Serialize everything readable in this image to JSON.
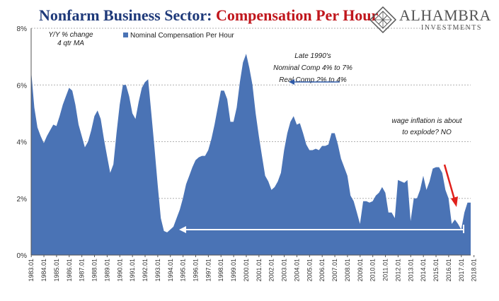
{
  "header": {
    "title_part1": "Nonfarm Business Sector:",
    "title_part2": "Compensation Per Hour",
    "logo_name": "ALHAMBRA",
    "logo_sub": "INVESTMENTS"
  },
  "colors": {
    "area": "#4a73b5",
    "title_blue": "#1f3a7a",
    "title_red": "#c0161c",
    "arrow_red": "#e0201b",
    "arrow_blue": "#2e5aa8"
  },
  "chart_data": {
    "type": "area",
    "title": "Nonfarm Business Sector: Compensation Per Hour",
    "ylim": [
      0,
      8
    ],
    "yticks": [
      "0%",
      "2%",
      "4%",
      "6%",
      "8%"
    ],
    "grid": true,
    "legend_position": "top-left",
    "x_tick_labels": [
      "1983.01",
      "1984.01",
      "1985.01",
      "1986.01",
      "1987.01",
      "1988.01",
      "1989.01",
      "1990.01",
      "1991.01",
      "1992.01",
      "1993.01",
      "1994.01",
      "1995.01",
      "1996.01",
      "1997.01",
      "1998.01",
      "1999.01",
      "2000.01",
      "2001.01",
      "2002.01",
      "2003.01",
      "2004.01",
      "2005.01",
      "2006.01",
      "2007.01",
      "2008.01",
      "2009.01",
      "2010.01",
      "2011.01",
      "2012.01",
      "2013.01",
      "2014.01",
      "2015.01",
      "2016.01",
      "2017.01",
      "2018.01"
    ],
    "series": [
      {
        "name": "Nominal Compensation Per Hour",
        "points": [
          [
            1983.0,
            6.5
          ],
          [
            1983.25,
            5.2
          ],
          [
            1983.5,
            4.5
          ],
          [
            1983.75,
            4.2
          ],
          [
            1984.0,
            3.95
          ],
          [
            1984.25,
            4.2
          ],
          [
            1984.5,
            4.4
          ],
          [
            1984.75,
            4.6
          ],
          [
            1985.0,
            4.55
          ],
          [
            1985.25,
            4.9
          ],
          [
            1985.5,
            5.3
          ],
          [
            1985.75,
            5.6
          ],
          [
            1986.0,
            5.9
          ],
          [
            1986.25,
            5.8
          ],
          [
            1986.5,
            5.3
          ],
          [
            1986.75,
            4.6
          ],
          [
            1987.0,
            4.2
          ],
          [
            1987.25,
            3.8
          ],
          [
            1987.5,
            4.0
          ],
          [
            1987.75,
            4.4
          ],
          [
            1988.0,
            4.9
          ],
          [
            1988.25,
            5.1
          ],
          [
            1988.5,
            4.8
          ],
          [
            1988.75,
            4.1
          ],
          [
            1989.0,
            3.5
          ],
          [
            1989.25,
            2.9
          ],
          [
            1989.5,
            3.2
          ],
          [
            1989.75,
            4.3
          ],
          [
            1990.0,
            5.3
          ],
          [
            1990.25,
            6.0
          ],
          [
            1990.5,
            6.0
          ],
          [
            1990.75,
            5.6
          ],
          [
            1991.0,
            5.0
          ],
          [
            1991.25,
            4.8
          ],
          [
            1991.5,
            5.4
          ],
          [
            1991.75,
            5.9
          ],
          [
            1992.0,
            6.1
          ],
          [
            1992.25,
            6.2
          ],
          [
            1992.5,
            5.0
          ],
          [
            1992.75,
            3.8
          ],
          [
            1993.0,
            2.5
          ],
          [
            1993.25,
            1.3
          ],
          [
            1993.5,
            0.85
          ],
          [
            1993.75,
            0.8
          ],
          [
            1994.0,
            0.9
          ],
          [
            1994.25,
            1.0
          ],
          [
            1994.5,
            1.3
          ],
          [
            1994.75,
            1.6
          ],
          [
            1995.0,
            2.0
          ],
          [
            1995.25,
            2.5
          ],
          [
            1995.5,
            2.8
          ],
          [
            1995.75,
            3.1
          ],
          [
            1996.0,
            3.35
          ],
          [
            1996.25,
            3.45
          ],
          [
            1996.5,
            3.5
          ],
          [
            1996.75,
            3.5
          ],
          [
            1997.0,
            3.7
          ],
          [
            1997.25,
            4.1
          ],
          [
            1997.5,
            4.6
          ],
          [
            1997.75,
            5.2
          ],
          [
            1998.0,
            5.8
          ],
          [
            1998.25,
            5.8
          ],
          [
            1998.5,
            5.5
          ],
          [
            1998.75,
            4.7
          ],
          [
            1999.0,
            4.7
          ],
          [
            1999.25,
            5.2
          ],
          [
            1999.5,
            6.1
          ],
          [
            1999.75,
            6.8
          ],
          [
            2000.0,
            7.1
          ],
          [
            2000.25,
            6.6
          ],
          [
            2000.5,
            6.0
          ],
          [
            2000.75,
            5.0
          ],
          [
            2001.0,
            4.2
          ],
          [
            2001.25,
            3.5
          ],
          [
            2001.5,
            2.8
          ],
          [
            2001.75,
            2.6
          ],
          [
            2002.0,
            2.3
          ],
          [
            2002.25,
            2.4
          ],
          [
            2002.5,
            2.6
          ],
          [
            2002.75,
            2.9
          ],
          [
            2003.0,
            3.7
          ],
          [
            2003.25,
            4.3
          ],
          [
            2003.5,
            4.7
          ],
          [
            2003.75,
            4.9
          ],
          [
            2004.0,
            4.6
          ],
          [
            2004.25,
            4.65
          ],
          [
            2004.5,
            4.3
          ],
          [
            2004.75,
            3.9
          ],
          [
            2005.0,
            3.7
          ],
          [
            2005.25,
            3.7
          ],
          [
            2005.5,
            3.75
          ],
          [
            2005.75,
            3.7
          ],
          [
            2006.0,
            3.85
          ],
          [
            2006.25,
            3.85
          ],
          [
            2006.5,
            3.9
          ],
          [
            2006.75,
            4.3
          ],
          [
            2007.0,
            4.3
          ],
          [
            2007.25,
            3.9
          ],
          [
            2007.5,
            3.4
          ],
          [
            2007.75,
            3.1
          ],
          [
            2008.0,
            2.8
          ],
          [
            2008.25,
            2.1
          ],
          [
            2008.5,
            1.9
          ],
          [
            2008.75,
            1.5
          ],
          [
            2009.0,
            1.1
          ],
          [
            2009.25,
            1.9
          ],
          [
            2009.5,
            1.9
          ],
          [
            2009.75,
            1.85
          ],
          [
            2010.0,
            1.9
          ],
          [
            2010.25,
            2.1
          ],
          [
            2010.5,
            2.2
          ],
          [
            2010.75,
            2.4
          ],
          [
            2011.0,
            2.2
          ],
          [
            2011.25,
            1.5
          ],
          [
            2011.5,
            1.5
          ],
          [
            2011.75,
            1.3
          ],
          [
            2012.0,
            2.65
          ],
          [
            2012.25,
            2.6
          ],
          [
            2012.5,
            2.55
          ],
          [
            2012.75,
            2.65
          ],
          [
            2013.0,
            1.2
          ],
          [
            2013.25,
            2.0
          ],
          [
            2013.5,
            2.0
          ],
          [
            2013.75,
            2.3
          ],
          [
            2014.0,
            2.8
          ],
          [
            2014.25,
            2.3
          ],
          [
            2014.5,
            2.6
          ],
          [
            2014.75,
            3.05
          ],
          [
            2015.0,
            3.1
          ],
          [
            2015.25,
            3.1
          ],
          [
            2015.5,
            2.9
          ],
          [
            2015.75,
            2.3
          ],
          [
            2016.0,
            2.0
          ],
          [
            2016.25,
            1.1
          ],
          [
            2016.5,
            1.25
          ],
          [
            2016.75,
            1.1
          ],
          [
            2017.0,
            0.9
          ],
          [
            2017.25,
            1.5
          ],
          [
            2017.5,
            1.85
          ],
          [
            2017.75,
            1.85
          ]
        ]
      }
    ],
    "legend_note_line1": "Y/Y % change",
    "legend_note_line2": "4 qtr MA",
    "legend_label": "Nominal Compensation Per Hour",
    "annotations": [
      {
        "lines": [
          "Late 1990's",
          "Nominal Comp 4% to 7%",
          "Real Comp 2% to 4%"
        ]
      },
      {
        "lines": [
          "wage inflation is about",
          "to explode? NO"
        ]
      }
    ]
  }
}
